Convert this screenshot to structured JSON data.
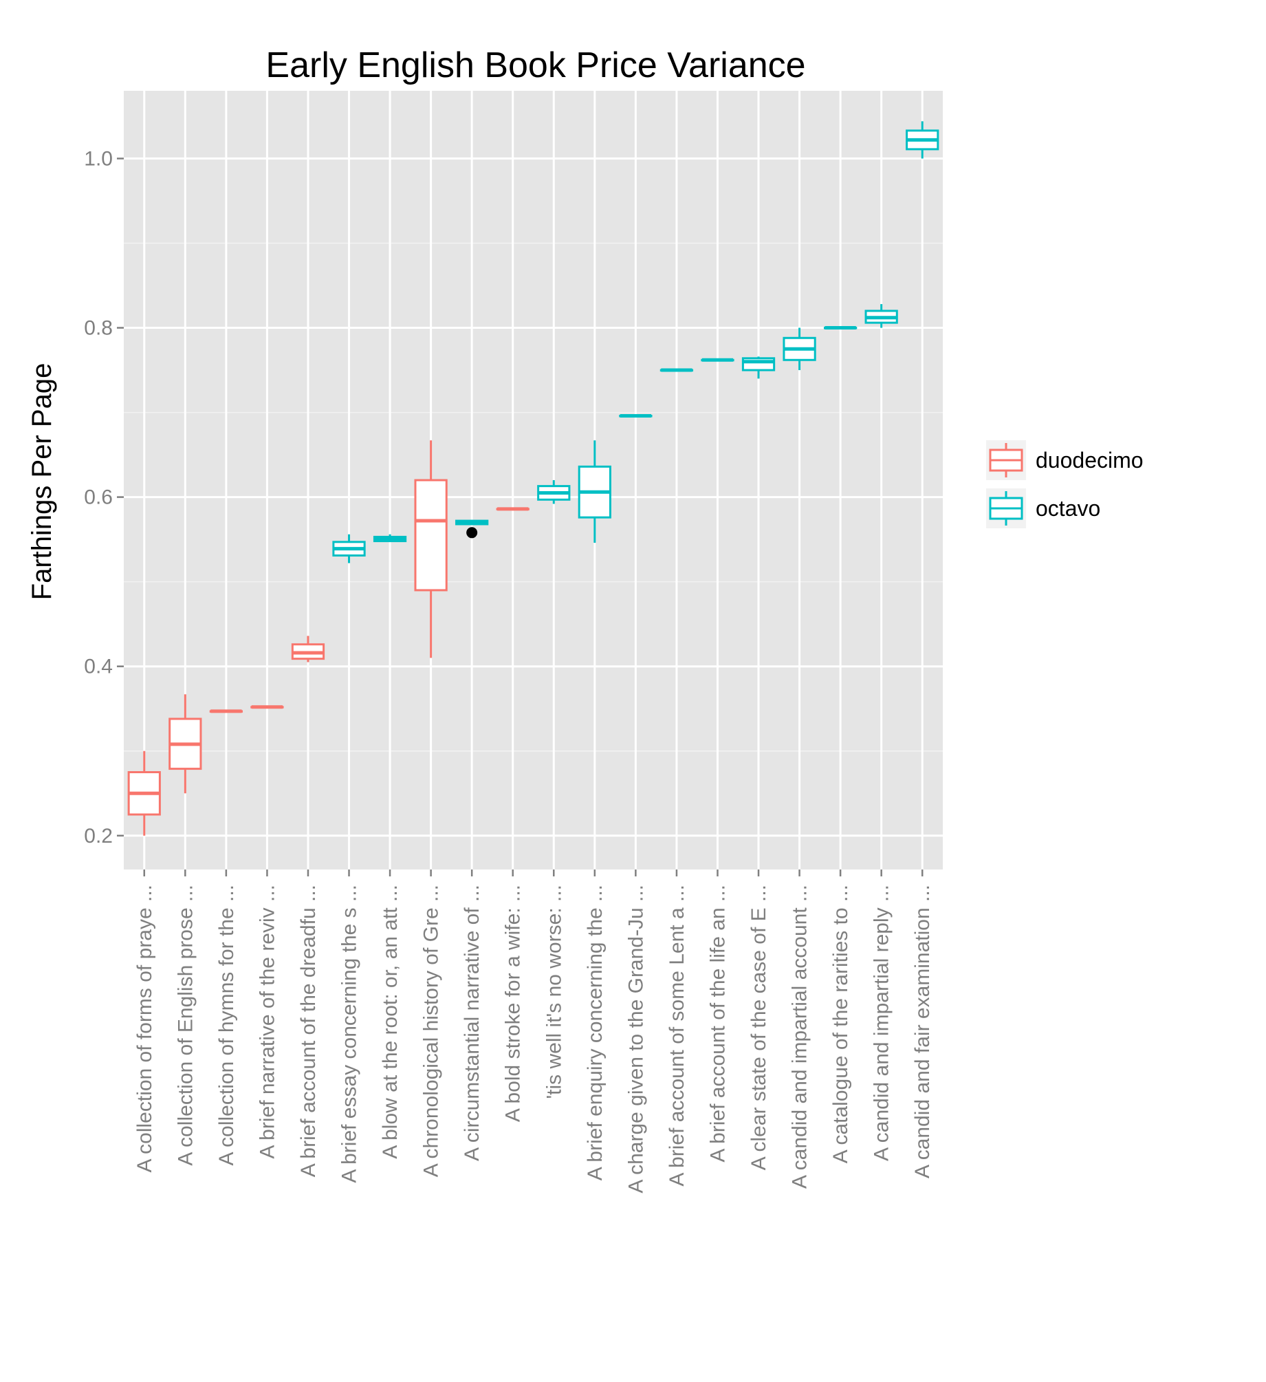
{
  "chart_data": {
    "type": "boxplot",
    "title": "Early English Book Price Variance",
    "ylabel": "Farthings Per Page",
    "xlabel": "",
    "ylim": [
      0.16,
      1.08
    ],
    "yticks": [
      "0.2",
      "0.4",
      "0.6",
      "0.8",
      "1.0"
    ],
    "ytick_values": [
      0.2,
      0.4,
      0.6,
      0.8,
      1.0
    ],
    "grid": true,
    "legend": {
      "position": "right",
      "entries": [
        {
          "name": "duodecimo",
          "color": "#F8766D"
        },
        {
          "name": "octavo",
          "color": "#00BFC4"
        }
      ]
    },
    "categories": [
      "A collection of forms of praye ...",
      "A collection of English prose  ...",
      "A collection of hymns for the  ...",
      "A brief narrative of the reviv ...",
      "A brief account of the dreadfu ...",
      "A brief essay concerning the s ...",
      "A blow at the root: or, an att ...",
      "A chronological history of Gre ...",
      "A circumstantial narrative of  ...",
      "A bold stroke for a wife: ...",
      "'tis well it's no worse: ...",
      "A brief enquiry concerning the ...",
      "A charge given to the Grand-Ju ...",
      "A brief account of some Lent a ...",
      "A brief account of the life an ...",
      "A clear state of the case of E ...",
      "A candid and impartial account ...",
      "A catalogue of the rarities to ...",
      "A candid and impartial reply ...",
      "A candid and fair examination  ..."
    ],
    "boxes": [
      {
        "format": "duodecimo",
        "min": 0.2,
        "q1": 0.225,
        "median": 0.25,
        "q3": 0.275,
        "max": 0.3,
        "outliers": []
      },
      {
        "format": "duodecimo",
        "min": 0.25,
        "q1": 0.279,
        "median": 0.308,
        "q3": 0.338,
        "max": 0.367,
        "outliers": []
      },
      {
        "format": "duodecimo",
        "min": 0.347,
        "q1": 0.347,
        "median": 0.347,
        "q3": 0.347,
        "max": 0.347,
        "outliers": []
      },
      {
        "format": "duodecimo",
        "min": 0.352,
        "q1": 0.352,
        "median": 0.352,
        "q3": 0.352,
        "max": 0.352,
        "outliers": []
      },
      {
        "format": "duodecimo",
        "min": 0.405,
        "q1": 0.409,
        "median": 0.416,
        "q3": 0.426,
        "max": 0.436,
        "outliers": []
      },
      {
        "format": "octavo",
        "min": 0.522,
        "q1": 0.531,
        "median": 0.539,
        "q3": 0.547,
        "max": 0.556,
        "outliers": []
      },
      {
        "format": "octavo",
        "min": 0.547,
        "q1": 0.548,
        "median": 0.551,
        "q3": 0.553,
        "max": 0.556,
        "outliers": []
      },
      {
        "format": "duodecimo",
        "min": 0.41,
        "q1": 0.49,
        "median": 0.572,
        "q3": 0.62,
        "max": 0.667,
        "outliers": []
      },
      {
        "format": "octavo",
        "min": 0.567,
        "q1": 0.568,
        "median": 0.57,
        "q3": 0.572,
        "max": 0.573,
        "outliers": [
          0.558
        ]
      },
      {
        "format": "duodecimo",
        "min": 0.586,
        "q1": 0.586,
        "median": 0.586,
        "q3": 0.586,
        "max": 0.586,
        "outliers": []
      },
      {
        "format": "octavo",
        "min": 0.592,
        "q1": 0.597,
        "median": 0.605,
        "q3": 0.613,
        "max": 0.62,
        "outliers": []
      },
      {
        "format": "octavo",
        "min": 0.546,
        "q1": 0.576,
        "median": 0.606,
        "q3": 0.636,
        "max": 0.667,
        "outliers": []
      },
      {
        "format": "octavo",
        "min": 0.696,
        "q1": 0.696,
        "median": 0.696,
        "q3": 0.696,
        "max": 0.696,
        "outliers": []
      },
      {
        "format": "octavo",
        "min": 0.75,
        "q1": 0.75,
        "median": 0.75,
        "q3": 0.75,
        "max": 0.75,
        "outliers": []
      },
      {
        "format": "octavo",
        "min": 0.762,
        "q1": 0.762,
        "median": 0.762,
        "q3": 0.762,
        "max": 0.762,
        "outliers": []
      },
      {
        "format": "octavo",
        "min": 0.74,
        "q1": 0.75,
        "median": 0.76,
        "q3": 0.764,
        "max": 0.766,
        "outliers": []
      },
      {
        "format": "octavo",
        "min": 0.75,
        "q1": 0.762,
        "median": 0.775,
        "q3": 0.788,
        "max": 0.8,
        "outliers": []
      },
      {
        "format": "octavo",
        "min": 0.8,
        "q1": 0.8,
        "median": 0.8,
        "q3": 0.8,
        "max": 0.8,
        "outliers": []
      },
      {
        "format": "octavo",
        "min": 0.8,
        "q1": 0.806,
        "median": 0.812,
        "q3": 0.82,
        "max": 0.828,
        "outliers": []
      },
      {
        "format": "octavo",
        "min": 1.0,
        "q1": 1.011,
        "median": 1.022,
        "q3": 1.033,
        "max": 1.044,
        "outliers": []
      }
    ]
  }
}
